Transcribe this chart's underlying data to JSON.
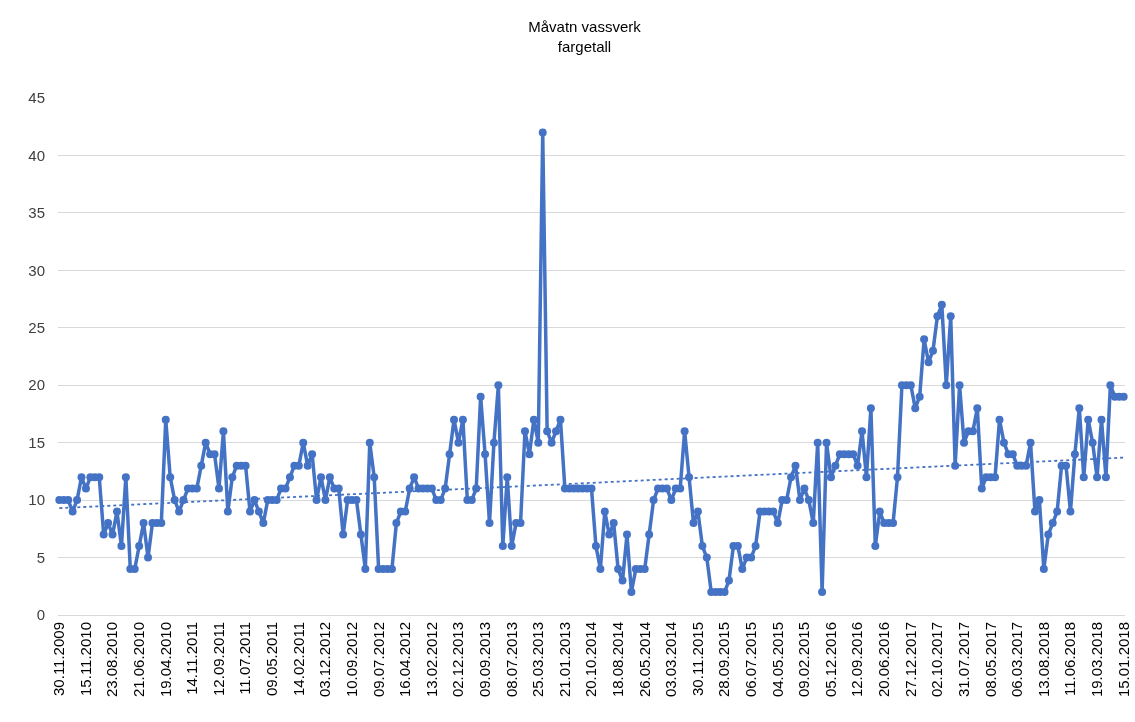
{
  "chart_data": {
    "type": "line",
    "title": "Måvatn vassverk\nfargetall",
    "categories": [
      "30.11.2009",
      null,
      null,
      null,
      null,
      null,
      "15.11.2010",
      null,
      null,
      null,
      null,
      null,
      "23.08.2010",
      null,
      null,
      null,
      null,
      null,
      "21.06.2010",
      null,
      null,
      null,
      null,
      null,
      "19.04.2010",
      null,
      null,
      null,
      null,
      null,
      "14.11.2011",
      null,
      null,
      null,
      null,
      null,
      "12.09.2011",
      null,
      null,
      null,
      null,
      null,
      "11.07.2011",
      null,
      null,
      null,
      null,
      null,
      "09.05.2011",
      null,
      null,
      null,
      null,
      null,
      "14.02.2011",
      null,
      null,
      null,
      null,
      null,
      "03.12.2012",
      null,
      null,
      null,
      null,
      null,
      "10.09.2012",
      null,
      null,
      null,
      null,
      null,
      "09.07.2012",
      null,
      null,
      null,
      null,
      null,
      "16.04.2012",
      null,
      null,
      null,
      null,
      null,
      "13.02.2012",
      null,
      null,
      null,
      null,
      null,
      "02.12.2013",
      null,
      null,
      null,
      null,
      null,
      "09.09.2013",
      null,
      null,
      null,
      null,
      null,
      "08.07.2013",
      null,
      null,
      null,
      null,
      null,
      "25.03.2013",
      null,
      null,
      null,
      null,
      null,
      "21.01.2013",
      null,
      null,
      null,
      null,
      null,
      "20.10.2014",
      null,
      null,
      null,
      null,
      null,
      "18.08.2014",
      null,
      null,
      null,
      null,
      null,
      "26.05.2014",
      null,
      null,
      null,
      null,
      null,
      "03.03.2014",
      null,
      null,
      null,
      null,
      null,
      "30.11.2015",
      null,
      null,
      null,
      null,
      null,
      "28.09.2015",
      null,
      null,
      null,
      null,
      null,
      "06.07.2015",
      null,
      null,
      null,
      null,
      null,
      "04.05.2015",
      null,
      null,
      null,
      null,
      null,
      "09.02.2015",
      null,
      null,
      null,
      null,
      null,
      "05.12.2016",
      null,
      null,
      null,
      null,
      null,
      "12.09.2016",
      null,
      null,
      null,
      null,
      null,
      "20.06.2016",
      null,
      null,
      null,
      null,
      null,
      "27.12.2017",
      null,
      null,
      null,
      null,
      null,
      "02.10.2017",
      null,
      null,
      null,
      null,
      null,
      "31.07.2017",
      null,
      null,
      null,
      null,
      null,
      "08.05.2017",
      null,
      null,
      null,
      null,
      null,
      "06.03.2017",
      null,
      null,
      null,
      null,
      null,
      "13.08.2018",
      null,
      null,
      null,
      null,
      null,
      "11.06.2018",
      null,
      null,
      null,
      null,
      null,
      "19.03.2018",
      null,
      null,
      null,
      null,
      null,
      "15.01.2018"
    ],
    "series": [
      {
        "color": "#4472c4",
        "marker": "circle",
        "line_style": "solid",
        "values": [
          10,
          10,
          10,
          9,
          10,
          12,
          11,
          12,
          12,
          12,
          7,
          8,
          7,
          9,
          6,
          12,
          4,
          4,
          6,
          8,
          5,
          8,
          8,
          8,
          17,
          12,
          10,
          9,
          10,
          11,
          11,
          11,
          13,
          15,
          14,
          14,
          11,
          16,
          9,
          12,
          13,
          13,
          13,
          9,
          10,
          9,
          8,
          10,
          10,
          10,
          11,
          11,
          12,
          13,
          13,
          15,
          13,
          14,
          10,
          12,
          10,
          12,
          11,
          11,
          7,
          10,
          10,
          10,
          7,
          4,
          15,
          12,
          4,
          4,
          4,
          4,
          8,
          9,
          9,
          11,
          12,
          11,
          11,
          11,
          11,
          10,
          10,
          11,
          14,
          17,
          15,
          17,
          10,
          10,
          11,
          19,
          14,
          8,
          15,
          20,
          6,
          12,
          6,
          8,
          8,
          16,
          14,
          17,
          15,
          42,
          16,
          15,
          16,
          17,
          11,
          11,
          11,
          11,
          11,
          11,
          11,
          6,
          4,
          9,
          7,
          8,
          4,
          3,
          7,
          2,
          4,
          4,
          4,
          7,
          10,
          11,
          11,
          11,
          10,
          11,
          11,
          16,
          12,
          8,
          9,
          6,
          5,
          2,
          2,
          2,
          2,
          3,
          6,
          6,
          4,
          5,
          5,
          6,
          9,
          9,
          9,
          9,
          8,
          10,
          10,
          12,
          13,
          10,
          11,
          10,
          8,
          15,
          2,
          15,
          12,
          13,
          14,
          14,
          14,
          14,
          13,
          16,
          12,
          18,
          6,
          9,
          8,
          8,
          8,
          12,
          20,
          20,
          20,
          18,
          19,
          24,
          22,
          23,
          26,
          27,
          20,
          26,
          13,
          20,
          15,
          16,
          16,
          18,
          11,
          12,
          12,
          12,
          17,
          15,
          14,
          14,
          13,
          13,
          13,
          15,
          9,
          10,
          4,
          7,
          8,
          9,
          13,
          13,
          9,
          14,
          18,
          12,
          17,
          15,
          12,
          17,
          12,
          20,
          19,
          19,
          19
        ]
      },
      {
        "type": "line",
        "color": "#4472c4",
        "marker": "none",
        "line_style": "dotted",
        "x": [
          "30.11.2009",
          "15.01.2018"
        ],
        "values": [
          9.3,
          13.7
        ]
      }
    ],
    "ylim": [
      0,
      45
    ],
    "yticks": [
      0,
      5,
      10,
      15,
      20,
      25,
      30,
      35,
      40,
      45
    ],
    "grid": "y"
  }
}
